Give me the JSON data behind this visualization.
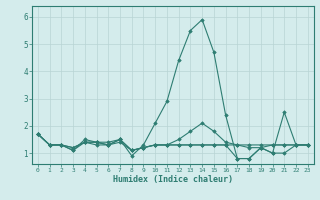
{
  "xlabel": "Humidex (Indice chaleur)",
  "ylabel": "",
  "background_color": "#d4ecec",
  "grid_color": "#b8d4d4",
  "line_color": "#2e7d72",
  "xlim": [
    -0.5,
    23.5
  ],
  "ylim": [
    0.6,
    6.4
  ],
  "xticks": [
    0,
    1,
    2,
    3,
    4,
    5,
    6,
    7,
    8,
    9,
    10,
    11,
    12,
    13,
    14,
    15,
    16,
    17,
    18,
    19,
    20,
    21,
    22,
    23
  ],
  "yticks": [
    1,
    2,
    3,
    4,
    5,
    6
  ],
  "series": [
    [
      1.7,
      1.3,
      1.3,
      1.1,
      1.5,
      1.4,
      1.3,
      1.5,
      0.9,
      1.3,
      2.1,
      2.9,
      4.4,
      5.5,
      5.9,
      4.7,
      2.4,
      0.8,
      0.8,
      1.2,
      1.0,
      2.5,
      1.3,
      1.3
    ],
    [
      1.7,
      1.3,
      1.3,
      1.1,
      1.4,
      1.3,
      1.3,
      1.5,
      1.1,
      1.2,
      1.3,
      1.3,
      1.3,
      1.3,
      1.3,
      1.3,
      1.3,
      1.3,
      1.3,
      1.3,
      1.3,
      1.3,
      1.3,
      1.3
    ],
    [
      1.7,
      1.3,
      1.3,
      1.2,
      1.4,
      1.4,
      1.3,
      1.4,
      1.1,
      1.2,
      1.3,
      1.3,
      1.3,
      1.3,
      1.3,
      1.3,
      1.3,
      0.8,
      0.8,
      1.2,
      1.0,
      1.0,
      1.3,
      1.3
    ],
    [
      1.7,
      1.3,
      1.3,
      1.2,
      1.4,
      1.4,
      1.4,
      1.5,
      1.1,
      1.2,
      1.3,
      1.3,
      1.5,
      1.8,
      2.1,
      1.8,
      1.4,
      1.3,
      1.2,
      1.2,
      1.3,
      1.3,
      1.3,
      1.3
    ]
  ]
}
